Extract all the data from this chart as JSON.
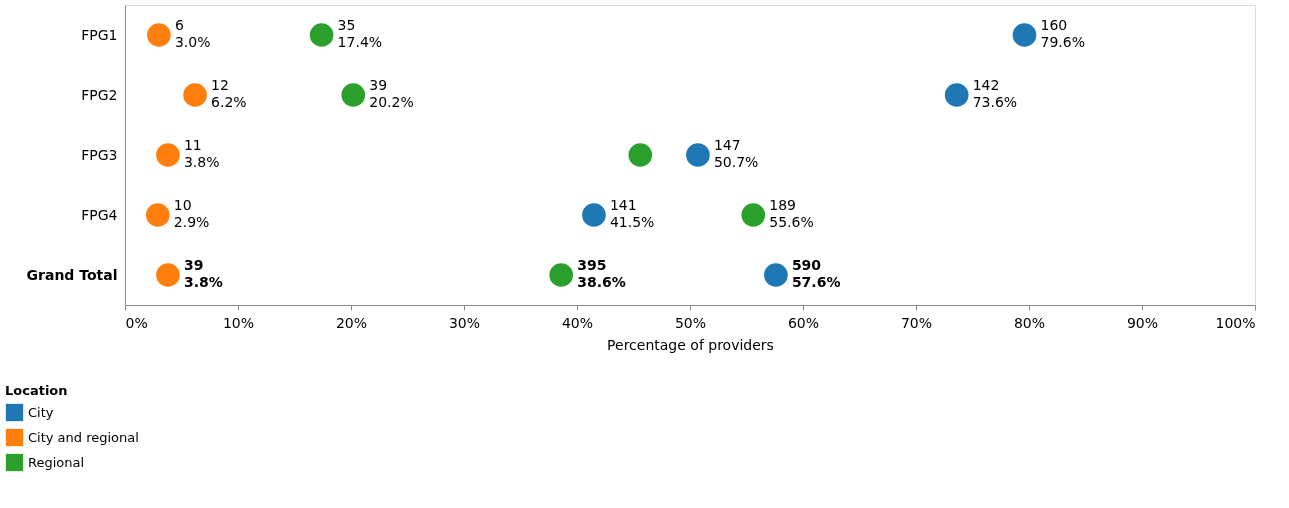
{
  "chart_data": {
    "type": "scatter",
    "orientation": "horizontal",
    "xlabel": "Percentage of providers",
    "legend_title": "Location",
    "legend": "bottom left",
    "marker": "circle",
    "grid": false,
    "categories": [
      "FPG1",
      "FPG2",
      "FPG3",
      "FPG4",
      "Grand Total"
    ],
    "xlim": [
      0,
      100
    ],
    "xticks": [
      {
        "value": 0,
        "label": "0%"
      },
      {
        "value": 10,
        "label": "10%"
      },
      {
        "value": 20,
        "label": "20%"
      },
      {
        "value": 30,
        "label": "30%"
      },
      {
        "value": 40,
        "label": "40%"
      },
      {
        "value": 50,
        "label": "50%"
      },
      {
        "value": 60,
        "label": "60%"
      },
      {
        "value": 70,
        "label": "70%"
      },
      {
        "value": 80,
        "label": "80%"
      },
      {
        "value": 90,
        "label": "90%"
      },
      {
        "value": 100,
        "label": "100%"
      }
    ],
    "series": [
      {
        "name": "City",
        "color": "#1f77b4",
        "values": [
          79.6,
          73.6,
          50.7,
          41.5,
          57.6
        ],
        "value_labels": [
          "160\n79.6%",
          "142\n73.6%",
          "147\n50.7%",
          "141\n41.5%",
          "590\n57.6%"
        ]
      },
      {
        "name": "City and regional",
        "color": "#ff7f0e",
        "values": [
          3.0,
          6.2,
          3.8,
          2.9,
          3.8
        ],
        "value_labels": [
          "6\n3.0%",
          "12\n6.2%",
          "11\n3.8%",
          "10\n2.9%",
          "39\n3.8%"
        ]
      },
      {
        "name": "Regional",
        "color": "#2ca02c",
        "values": [
          17.4,
          20.2,
          45.6,
          55.6,
          38.6
        ],
        "value_labels": [
          "35\n17.4%",
          "39\n20.2%",
          null,
          "189\n55.6%",
          "395\n38.6%"
        ]
      }
    ]
  }
}
